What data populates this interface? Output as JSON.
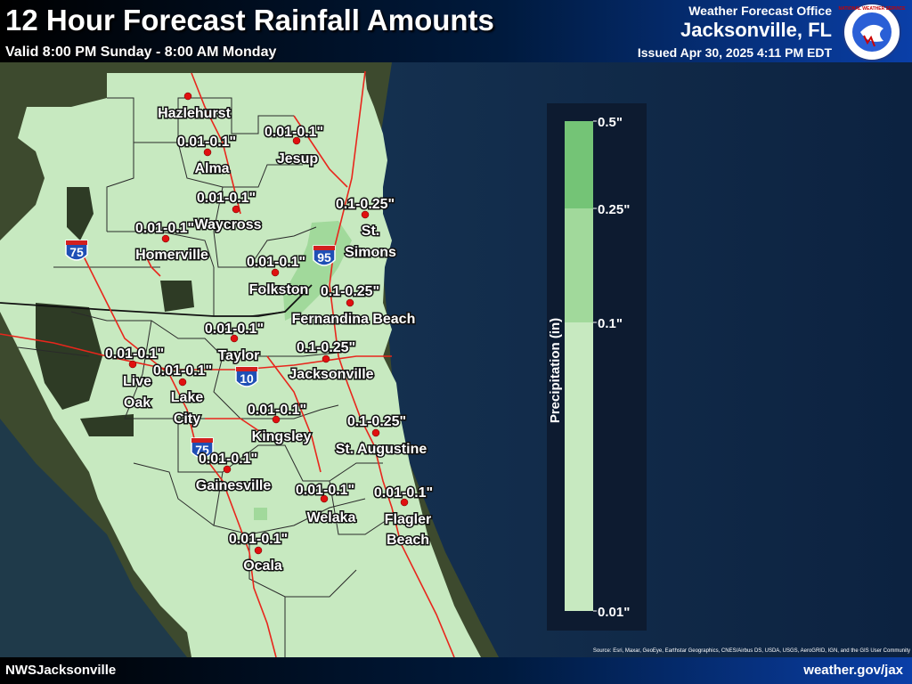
{
  "header": {
    "title": "12 Hour Forecast Rainfall Amounts",
    "valid": "Valid 8:00 PM Sunday - 8:00 AM Monday",
    "office": "Weather Forecast Office",
    "city": "Jacksonville, FL",
    "issued": "Issued Apr 30, 2025 4:11 PM EDT"
  },
  "footer": {
    "left": "NWSJacksonville",
    "right": "weather.gov/jax",
    "credits": "Source: Esri, Maxar, GeoEye, Earthstar Geographics, CNES/Airbus DS, USDA, USGS, AeroGRID, IGN, and the GIS User Community"
  },
  "logo": {
    "text": "NATIONAL WEATHER SERVICE"
  },
  "highway_shields": [
    {
      "id": "i75-north",
      "label": "75"
    },
    {
      "id": "i95",
      "label": "95"
    },
    {
      "id": "i10",
      "label": "10"
    },
    {
      "id": "i75-south",
      "label": "75"
    }
  ],
  "legend": {
    "title": "Precipitation (in)",
    "bins": [
      {
        "label": "0.5\"",
        "color": "#74c476"
      },
      {
        "label": "0.25\"",
        "color": "#a1d99b"
      },
      {
        "label": "0.1\"",
        "color": "#c7e9c0"
      },
      {
        "label": "0.01\"",
        "color": "#c7e9c0"
      }
    ]
  },
  "colors": {
    "land_light": "#c7e9c0",
    "land_medium": "#a1d99b",
    "ocean": "#0f2a4d",
    "roads": "#e8261c",
    "boundaries": "#222222",
    "city_dot": "#e01010"
  },
  "cities": [
    {
      "name": "Hazlehurst",
      "value": ""
    },
    {
      "name": "Alma",
      "value": "0.01-0.1\""
    },
    {
      "name": "Jesup",
      "value": "0.01-0.1\""
    },
    {
      "name": "Waycross",
      "value": "0.01-0.1\""
    },
    {
      "name": "Homerville",
      "value": "0.01-0.1\""
    },
    {
      "name": "St. Simons",
      "value": "0.1-0.25\""
    },
    {
      "name": "Folkston",
      "value": "0.01-0.1\""
    },
    {
      "name": "Fernandina Beach",
      "value": "0.1-0.25\""
    },
    {
      "name": "Taylor",
      "value": "0.01-0.1\""
    },
    {
      "name": "Jacksonville",
      "value": "0.1-0.25\""
    },
    {
      "name": "Live Oak",
      "value": "0.01-0.1\""
    },
    {
      "name": "Lake City",
      "value": "0.01-0.1\""
    },
    {
      "name": "Kingsley",
      "value": "0.01-0.1\""
    },
    {
      "name": "St. Augustine",
      "value": "0.1-0.25\""
    },
    {
      "name": "Gainesville",
      "value": "0.01-0.1\""
    },
    {
      "name": "Welaka",
      "value": "0.01-0.1\""
    },
    {
      "name": "Flagler Beach",
      "value": "0.01-0.1\""
    },
    {
      "name": "Ocala",
      "value": "0.01-0.1\""
    }
  ]
}
